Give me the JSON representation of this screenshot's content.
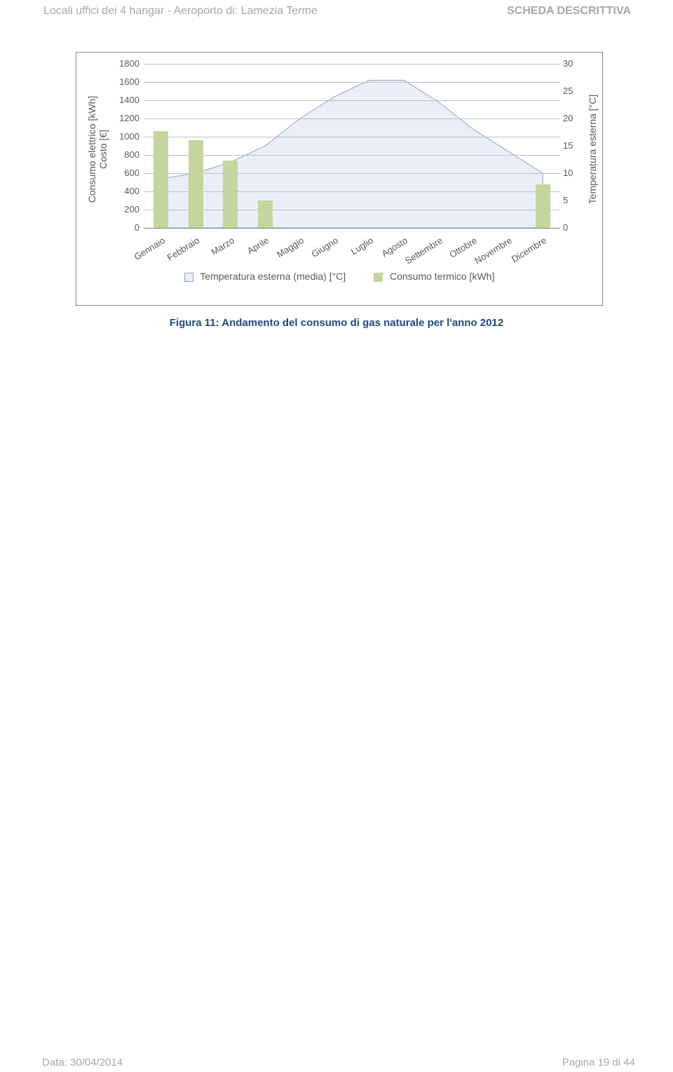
{
  "header": {
    "left": "Locali uffici dei 4 hangar -  Aeroporto di: Lamezia Terme",
    "right": "SCHEDA DESCRITTIVA"
  },
  "chart": {
    "type": "bar+area",
    "y_left": {
      "label_line1": "Consumo elettrico [kWh]",
      "label_line2": "Costo [€]",
      "min": 0,
      "max": 1800,
      "step": 200
    },
    "y_right": {
      "label": "Temperatura esterna [°C]",
      "min": 0,
      "max": 30,
      "step": 5
    },
    "categories": [
      "Gennaio",
      "Febbraio",
      "Marzo",
      "Aprile",
      "Maggio",
      "Giugno",
      "Luglio",
      "Agosto",
      "Settembre",
      "Ottobre",
      "Novembre",
      "Dicembre"
    ],
    "bars": {
      "values": [
        1060,
        960,
        740,
        300,
        0,
        0,
        0,
        0,
        0,
        0,
        0,
        480
      ],
      "color": "#c3d69b",
      "width": 0.42
    },
    "area": {
      "values": [
        9,
        10,
        12,
        15,
        20,
        24,
        27,
        27,
        23,
        18,
        14,
        10
      ],
      "fill": "#eaeff7",
      "stroke": "#8aa4c8"
    },
    "grid_color": "#bfbfbf",
    "axis_color": "#bfbfbf",
    "background": "#ffffff",
    "ylabel_fontsize": 14,
    "tick_fontsize": 13
  },
  "legend": {
    "items": [
      {
        "color": "#eaeff7",
        "border": "#8aa4c8",
        "label": "Temperatura esterna (media) [°C]"
      },
      {
        "color": "#c3d69b",
        "border": "#c3d69b",
        "label": "Consumo termico [kWh]"
      }
    ]
  },
  "caption": "Figura 11: Andamento del consumo di gas naturale per l'anno 2012",
  "footer": {
    "left": "Data: 30/04/2014",
    "right": "Pagina 19 di 44"
  }
}
